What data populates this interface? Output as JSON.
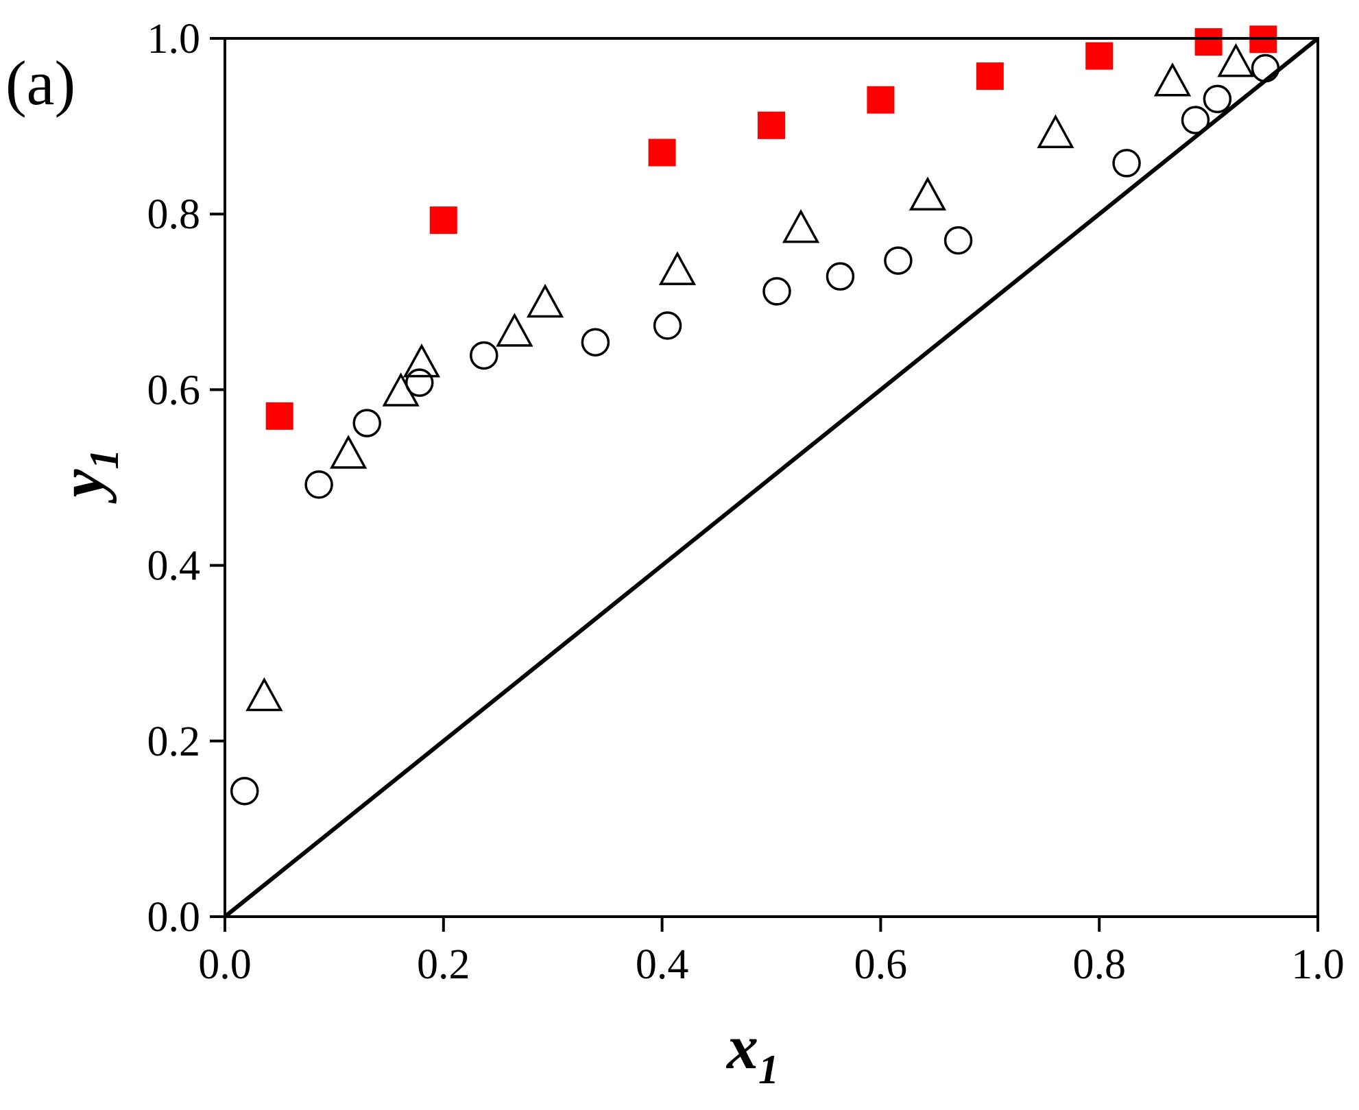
{
  "panel_label": "(a)",
  "chart_data": {
    "type": "scatter",
    "xlabel": "x",
    "xlabel_sub": "1",
    "ylabel": "y",
    "ylabel_sub": "1",
    "xlim": [
      0.0,
      1.0
    ],
    "ylim": [
      0.0,
      1.0
    ],
    "xticks": [
      "0.0",
      "0.2",
      "0.4",
      "0.6",
      "0.8",
      "1.0"
    ],
    "yticks": [
      "0.0",
      "0.2",
      "0.4",
      "0.6",
      "0.8",
      "1.0"
    ],
    "grid": false,
    "diagonal": {
      "x": [
        0.0,
        1.0
      ],
      "y": [
        0.0,
        1.0
      ],
      "color": "#000000"
    },
    "series": [
      {
        "marker": "filled-square",
        "color": "#ff0000",
        "points": [
          [
            0.05,
            0.57
          ],
          [
            0.2,
            0.793
          ],
          [
            0.4,
            0.87
          ],
          [
            0.5,
            0.901
          ],
          [
            0.6,
            0.93
          ],
          [
            0.7,
            0.957
          ],
          [
            0.8,
            0.98
          ],
          [
            0.9,
            0.996
          ],
          [
            0.95,
            0.999
          ]
        ]
      },
      {
        "marker": "open-triangle",
        "color": "#000000",
        "points": [
          [
            0.036,
            0.25
          ],
          [
            0.113,
            0.526
          ],
          [
            0.161,
            0.597
          ],
          [
            0.18,
            0.63
          ],
          [
            0.265,
            0.665
          ],
          [
            0.293,
            0.698
          ],
          [
            0.414,
            0.735
          ],
          [
            0.527,
            0.783
          ],
          [
            0.643,
            0.82
          ],
          [
            0.76,
            0.891
          ],
          [
            0.867,
            0.95
          ],
          [
            0.925,
            0.972
          ]
        ]
      },
      {
        "marker": "open-circle",
        "color": "#000000",
        "points": [
          [
            0.018,
            0.143
          ],
          [
            0.086,
            0.492
          ],
          [
            0.13,
            0.562
          ],
          [
            0.178,
            0.608
          ],
          [
            0.237,
            0.639
          ],
          [
            0.339,
            0.654
          ],
          [
            0.405,
            0.673
          ],
          [
            0.505,
            0.712
          ],
          [
            0.563,
            0.729
          ],
          [
            0.616,
            0.747
          ],
          [
            0.671,
            0.77
          ],
          [
            0.825,
            0.858
          ],
          [
            0.888,
            0.907
          ],
          [
            0.908,
            0.931
          ],
          [
            0.952,
            0.966
          ]
        ]
      }
    ]
  }
}
